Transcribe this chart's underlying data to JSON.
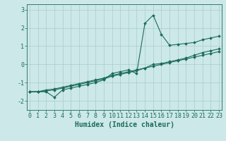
{
  "background_color": "#cce8e8",
  "grid_color": "#aacccc",
  "line_color": "#1a6b5a",
  "marker": "D",
  "marker_size": 2,
  "xlabel": "Humidex (Indice chaleur)",
  "xlabel_fontsize": 7,
  "tick_fontsize": 6,
  "yticks": [
    -2,
    -1,
    0,
    1,
    2,
    3
  ],
  "xticks": [
    0,
    1,
    2,
    3,
    4,
    5,
    6,
    7,
    8,
    9,
    10,
    11,
    12,
    13,
    14,
    15,
    16,
    17,
    18,
    19,
    20,
    21,
    22,
    23
  ],
  "xlim": [
    -0.3,
    23.3
  ],
  "ylim": [
    -2.5,
    3.3
  ],
  "line1_x": [
    0,
    1,
    2,
    3,
    4,
    5,
    6,
    7,
    8,
    9,
    10,
    11,
    12,
    13,
    14,
    15,
    16,
    17,
    18,
    19,
    20,
    21,
    22,
    23
  ],
  "line1_y": [
    -1.5,
    -1.5,
    -1.5,
    -1.8,
    -1.4,
    -1.3,
    -1.2,
    -1.1,
    -1.0,
    -0.85,
    -0.5,
    -0.4,
    -0.3,
    -0.5,
    2.25,
    2.7,
    1.65,
    1.05,
    1.1,
    1.15,
    1.2,
    1.35,
    1.45,
    1.55
  ],
  "line2_x": [
    0,
    1,
    2,
    3,
    4,
    5,
    6,
    7,
    8,
    9,
    10,
    11,
    12,
    13,
    14,
    15,
    16,
    17,
    18,
    19,
    20,
    21,
    22,
    23
  ],
  "line2_y": [
    -1.5,
    -1.5,
    -1.4,
    -1.35,
    -1.25,
    -1.15,
    -1.05,
    -0.95,
    -0.85,
    -0.75,
    -0.6,
    -0.5,
    -0.4,
    -0.3,
    -0.2,
    -0.1,
    0.0,
    0.1,
    0.2,
    0.3,
    0.4,
    0.5,
    0.6,
    0.7
  ],
  "line3_x": [
    0,
    1,
    2,
    3,
    4,
    5,
    6,
    7,
    8,
    9,
    10,
    11,
    12,
    13,
    14,
    15,
    16,
    17,
    18,
    19,
    20,
    21,
    22,
    23
  ],
  "line3_y": [
    -1.5,
    -1.5,
    -1.45,
    -1.4,
    -1.3,
    -1.2,
    -1.1,
    -1.0,
    -0.9,
    -0.8,
    -0.65,
    -0.55,
    -0.45,
    -0.35,
    -0.2,
    -0.0,
    0.05,
    0.15,
    0.25,
    0.35,
    0.5,
    0.65,
    0.75,
    0.85
  ]
}
